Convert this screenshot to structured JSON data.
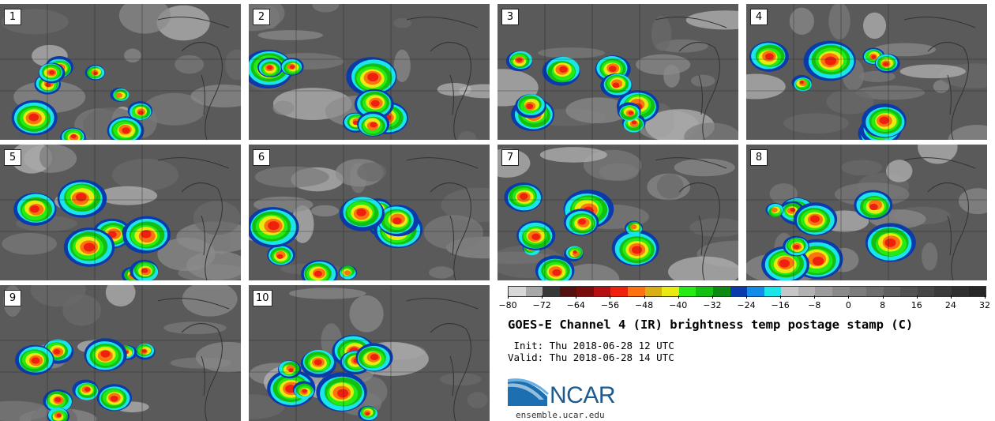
{
  "panels": [
    {
      "label": "1"
    },
    {
      "label": "2"
    },
    {
      "label": "3"
    },
    {
      "label": "4"
    },
    {
      "label": "5"
    },
    {
      "label": "6"
    },
    {
      "label": "7"
    },
    {
      "label": "8"
    },
    {
      "label": "9"
    },
    {
      "label": "10"
    }
  ],
  "colorbar": {
    "colors": [
      "#d8d8d8",
      "#a8a8a8",
      "#383838",
      "#521010",
      "#7a0b0b",
      "#b50f0f",
      "#f0200e",
      "#fb7410",
      "#d8b015",
      "#e8ea12",
      "#26ea14",
      "#13c011",
      "#0e8a12",
      "#0a3aab",
      "#138be8",
      "#1ae6ea",
      "#c6c6c6",
      "#b2b2b2",
      "#9c9c9c",
      "#8a8a8a",
      "#7c7c7c",
      "#6e6e6e",
      "#606060",
      "#525252",
      "#464646",
      "#3a3a3a",
      "#303030",
      "#262626"
    ],
    "ticks": [
      "−80",
      "−72",
      "−64",
      "−56",
      "−48",
      "−40",
      "−32",
      "−24",
      "−16",
      "−8",
      "0",
      "8",
      "16",
      "24",
      "32"
    ]
  },
  "title": "GOES-E Channel 4 (IR) brightness temp postage stamp (C)",
  "init_text": " Init: Thu 2018-06-28 12 UTC",
  "valid_text": "Valid: Thu 2018-06-28 14 UTC",
  "logo": {
    "name": "NCAR",
    "site": "ensemble.ucar.edu"
  }
}
